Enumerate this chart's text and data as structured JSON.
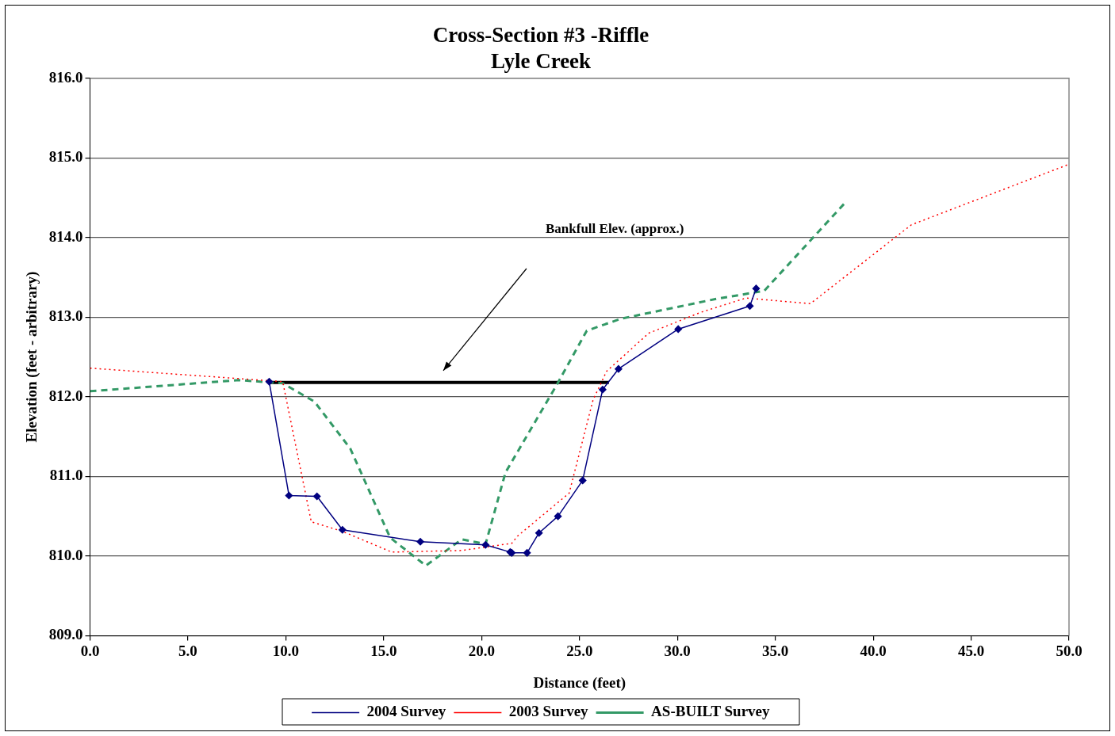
{
  "chart_data": {
    "type": "line",
    "title": "Cross-Section #3 -Riffle\nLyle Creek",
    "xlabel": "Distance (feet)",
    "ylabel": "Elevation (feet - arbitrary)",
    "xlim": [
      0,
      50
    ],
    "xticks": [
      {
        "value": 0,
        "label": "0.0"
      },
      {
        "value": 5,
        "label": "5.0"
      },
      {
        "value": 10,
        "label": "10.0"
      },
      {
        "value": 15,
        "label": "15.0"
      },
      {
        "value": 20,
        "label": "20.0"
      },
      {
        "value": 25,
        "label": "25.0"
      },
      {
        "value": 30,
        "label": "30.0"
      },
      {
        "value": 35,
        "label": "35.0"
      },
      {
        "value": 40,
        "label": "40.0"
      },
      {
        "value": 45,
        "label": "45.0"
      },
      {
        "value": 50,
        "label": "50.0"
      }
    ],
    "ylim": [
      809,
      816
    ],
    "yticks": [
      {
        "value": 809,
        "label": "809.0"
      },
      {
        "value": 810,
        "label": "810.0"
      },
      {
        "value": 811,
        "label": "811.0"
      },
      {
        "value": 812,
        "label": "812.0"
      },
      {
        "value": 813,
        "label": "813.0"
      },
      {
        "value": 814,
        "label": "814.0"
      },
      {
        "value": 815,
        "label": "815.0"
      },
      {
        "value": 816,
        "label": "816.0"
      }
    ],
    "grid": "y",
    "legend": "bottom",
    "series": [
      {
        "name": "2004 Survey",
        "color": "#000080",
        "marker": "diamond",
        "line_style": "solid",
        "x": [
          9.15,
          10.16,
          11.59,
          12.89,
          16.87,
          20.2,
          21.46,
          21.54,
          22.32,
          22.93,
          23.9,
          25.16,
          26.18,
          26.99,
          30.04,
          33.7,
          34.02
        ],
        "values": [
          812.19,
          810.76,
          810.75,
          810.33,
          810.18,
          810.14,
          810.05,
          810.04,
          810.04,
          810.29,
          810.5,
          810.95,
          812.09,
          812.35,
          812.85,
          813.14,
          813.36
        ]
      },
      {
        "name": "2003 Survey",
        "color": "#ff0000",
        "marker": "none",
        "line_style": "dotted",
        "x": [
          0,
          9.84,
          11.3,
          12.89,
          15.41,
          18.98,
          21.54,
          21.83,
          24.47,
          25.69,
          26.38,
          28.54,
          31.18,
          33.5,
          36.79,
          41.95,
          50
        ],
        "values": [
          812.36,
          812.19,
          810.43,
          810.31,
          810.05,
          810.07,
          810.16,
          810.25,
          810.79,
          811.96,
          812.32,
          812.8,
          813.06,
          813.24,
          813.17,
          814.16,
          814.92
        ]
      },
      {
        "name": "AS-BUILT Survey",
        "color": "#339966",
        "marker": "none",
        "line_style": "dashed",
        "x": [
          0,
          7.6,
          9.84,
          11.46,
          13.29,
          15.33,
          17.15,
          18.98,
          20.2,
          21.22,
          23.86,
          25.37,
          27.11,
          31.99,
          34.43,
          38.5
        ],
        "values": [
          812.07,
          812.21,
          812.17,
          811.94,
          811.35,
          810.23,
          809.88,
          810.21,
          810.15,
          811.05,
          812.16,
          812.83,
          812.98,
          813.23,
          813.33,
          814.42
        ]
      },
      {
        "color": "#000000",
        "marker": "none",
        "line_style": "solid",
        "x": [
          9.15,
          26.5
        ],
        "values": [
          812.18,
          812.18
        ]
      }
    ],
    "annotations": [
      "Bankfull Elev. (approx.)"
    ]
  }
}
